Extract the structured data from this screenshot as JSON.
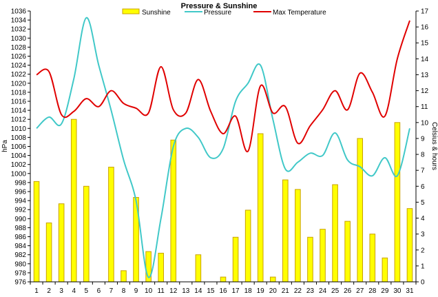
{
  "chart_data": {
    "type": "bar+line",
    "title": "Pressure & Sunshine",
    "x": [
      1,
      2,
      3,
      4,
      5,
      6,
      7,
      8,
      9,
      10,
      11,
      12,
      13,
      14,
      15,
      16,
      17,
      18,
      19,
      20,
      21,
      22,
      23,
      24,
      25,
      26,
      27,
      28,
      29,
      30,
      31
    ],
    "y_left": {
      "label": "hPa",
      "min": 976,
      "max": 1036,
      "step": 2
    },
    "y_right": {
      "label": "Celsius & hours",
      "min": 0,
      "max": 17,
      "step": 1
    },
    "series": [
      {
        "name": "Sunshine",
        "type": "bar",
        "axis": "right",
        "color": "#ffff00",
        "stroke": "#c8a000",
        "values": [
          6.3,
          3.7,
          4.9,
          10.2,
          6.0,
          0,
          7.2,
          0.7,
          5.3,
          1.9,
          1.8,
          8.9,
          0,
          1.7,
          0,
          0.3,
          2.8,
          4.5,
          9.3,
          0.3,
          6.4,
          5.8,
          2.8,
          3.3,
          6.1,
          3.8,
          9.0,
          3.0,
          1.5,
          10.0,
          4.6
        ]
      },
      {
        "name": "Pressure",
        "type": "line",
        "axis": "left",
        "color": "#40c8c8",
        "values": [
          1010,
          1012.5,
          1011,
          1021,
          1034.5,
          1024,
          1014,
          1003,
          994,
          977,
          990,
          1006,
          1010,
          1008,
          1003.5,
          1005.5,
          1016,
          1020,
          1024,
          1012,
          1001,
          1002.5,
          1004.5,
          1004,
          1009,
          1003,
          1001.5,
          999.5,
          1003.5,
          999.5,
          1010
        ]
      },
      {
        "name": "Max Temperature",
        "type": "line",
        "axis": "right",
        "color": "#e00000",
        "values": [
          13.0,
          13.2,
          10.5,
          10.7,
          11.5,
          11.0,
          12.0,
          11.2,
          10.9,
          10.6,
          13.5,
          10.8,
          10.6,
          12.7,
          10.7,
          9.3,
          10.4,
          8.2,
          12.3,
          10.6,
          11.0,
          8.7,
          9.8,
          10.8,
          12.0,
          10.8,
          13.1,
          11.9,
          10.4,
          14.0,
          16.4
        ]
      }
    ],
    "legend_position": "top",
    "grid": false
  }
}
